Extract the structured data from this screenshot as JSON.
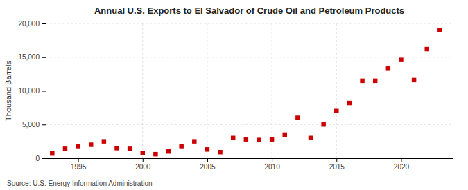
{
  "chart_data": {
    "type": "scatter",
    "title": "Annual U.S. Exports to El Salvador of Crude Oil and Petroleum Products",
    "ylabel": "Thousand Barrels",
    "source": "Source: U.S. Energy Information Administration",
    "x": [
      1993,
      1994,
      1995,
      1996,
      1997,
      1998,
      1999,
      2000,
      2001,
      2002,
      2003,
      2004,
      2005,
      2006,
      2007,
      2008,
      2009,
      2010,
      2011,
      2012,
      2013,
      2014,
      2015,
      2016,
      2017,
      2018,
      2019,
      2020,
      2021,
      2022,
      2023
    ],
    "values": [
      700,
      1400,
      1800,
      2000,
      2500,
      1500,
      1400,
      800,
      600,
      1000,
      1800,
      2500,
      1300,
      900,
      3000,
      2800,
      2700,
      2800,
      3500,
      6000,
      3000,
      5000,
      7000,
      8200,
      11500,
      11500,
      13300,
      14600,
      11600,
      16200,
      19000
    ],
    "color": "#cc0000",
    "marker": "square",
    "xlim": [
      1992.5,
      2024
    ],
    "xticks": [
      1995,
      2000,
      2005,
      2010,
      2015,
      2020
    ],
    "ylim": [
      0,
      20000
    ],
    "yticks": [
      0,
      {
        "value": 5000,
        "label": "5,000"
      },
      {
        "value": 10000,
        "label": "10,000"
      },
      {
        "value": 15000,
        "label": "15,000"
      },
      {
        "value": 20000,
        "label": "20,000"
      }
    ],
    "grid": true
  }
}
